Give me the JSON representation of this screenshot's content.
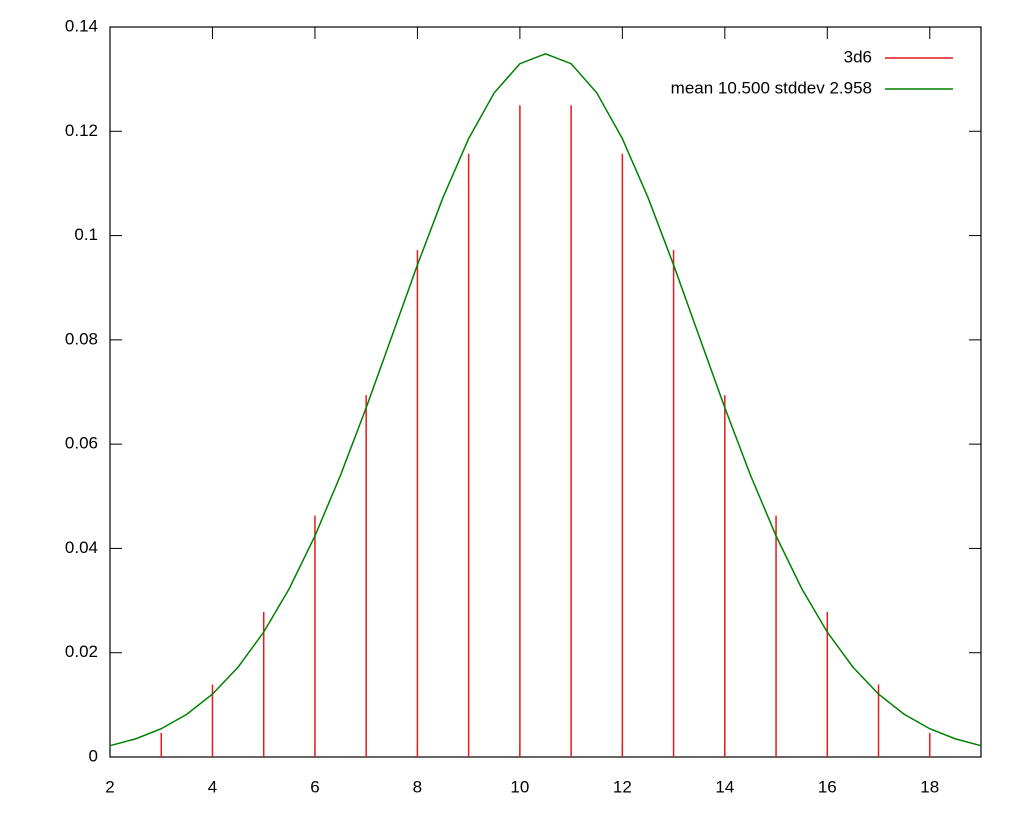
{
  "chart_data": {
    "type": "line",
    "xlim": [
      2,
      19
    ],
    "xticks": [
      2,
      4,
      6,
      8,
      10,
      12,
      14,
      16,
      18
    ],
    "ylim": [
      0,
      0.14
    ],
    "yticks": [
      0,
      0.02,
      0.04,
      0.06,
      0.08,
      0.1,
      0.12,
      0.14
    ],
    "legend": "top-right",
    "series": [
      {
        "name": "3d6",
        "style": "impulses",
        "color": "#e41a1c",
        "x": [
          3,
          4,
          5,
          6,
          7,
          8,
          9,
          10,
          11,
          12,
          13,
          14,
          15,
          16,
          17,
          18
        ],
        "values": [
          0.00463,
          0.0139,
          0.0278,
          0.0463,
          0.0694,
          0.0972,
          0.1157,
          0.125,
          0.125,
          0.1157,
          0.0972,
          0.0694,
          0.0463,
          0.0278,
          0.0139,
          0.00463
        ]
      },
      {
        "name": "mean 10.500 stddev 2.958",
        "style": "lines",
        "color": "#008000",
        "x": [
          2,
          2.5,
          3,
          3.5,
          4,
          4.5,
          5,
          5.5,
          6,
          6.5,
          7,
          7.5,
          8,
          8.5,
          9,
          9.5,
          10,
          10.5,
          11,
          11.5,
          12,
          12.5,
          13,
          13.5,
          14,
          14.5,
          15,
          15.5,
          16,
          16.5,
          17,
          17.5,
          18,
          18.5,
          19
        ],
        "values": [
          0.00217,
          0.00348,
          0.00542,
          0.0082,
          0.01206,
          0.01724,
          0.02395,
          0.03232,
          0.0424,
          0.05406,
          0.06698,
          0.08064,
          0.09437,
          0.10731,
          0.1186,
          0.12738,
          0.13296,
          0.13487,
          0.13296,
          0.12738,
          0.1186,
          0.10731,
          0.09437,
          0.08064,
          0.06698,
          0.05406,
          0.0424,
          0.03232,
          0.02395,
          0.01724,
          0.01206,
          0.0082,
          0.00542,
          0.00348,
          0.00217
        ]
      }
    ]
  }
}
